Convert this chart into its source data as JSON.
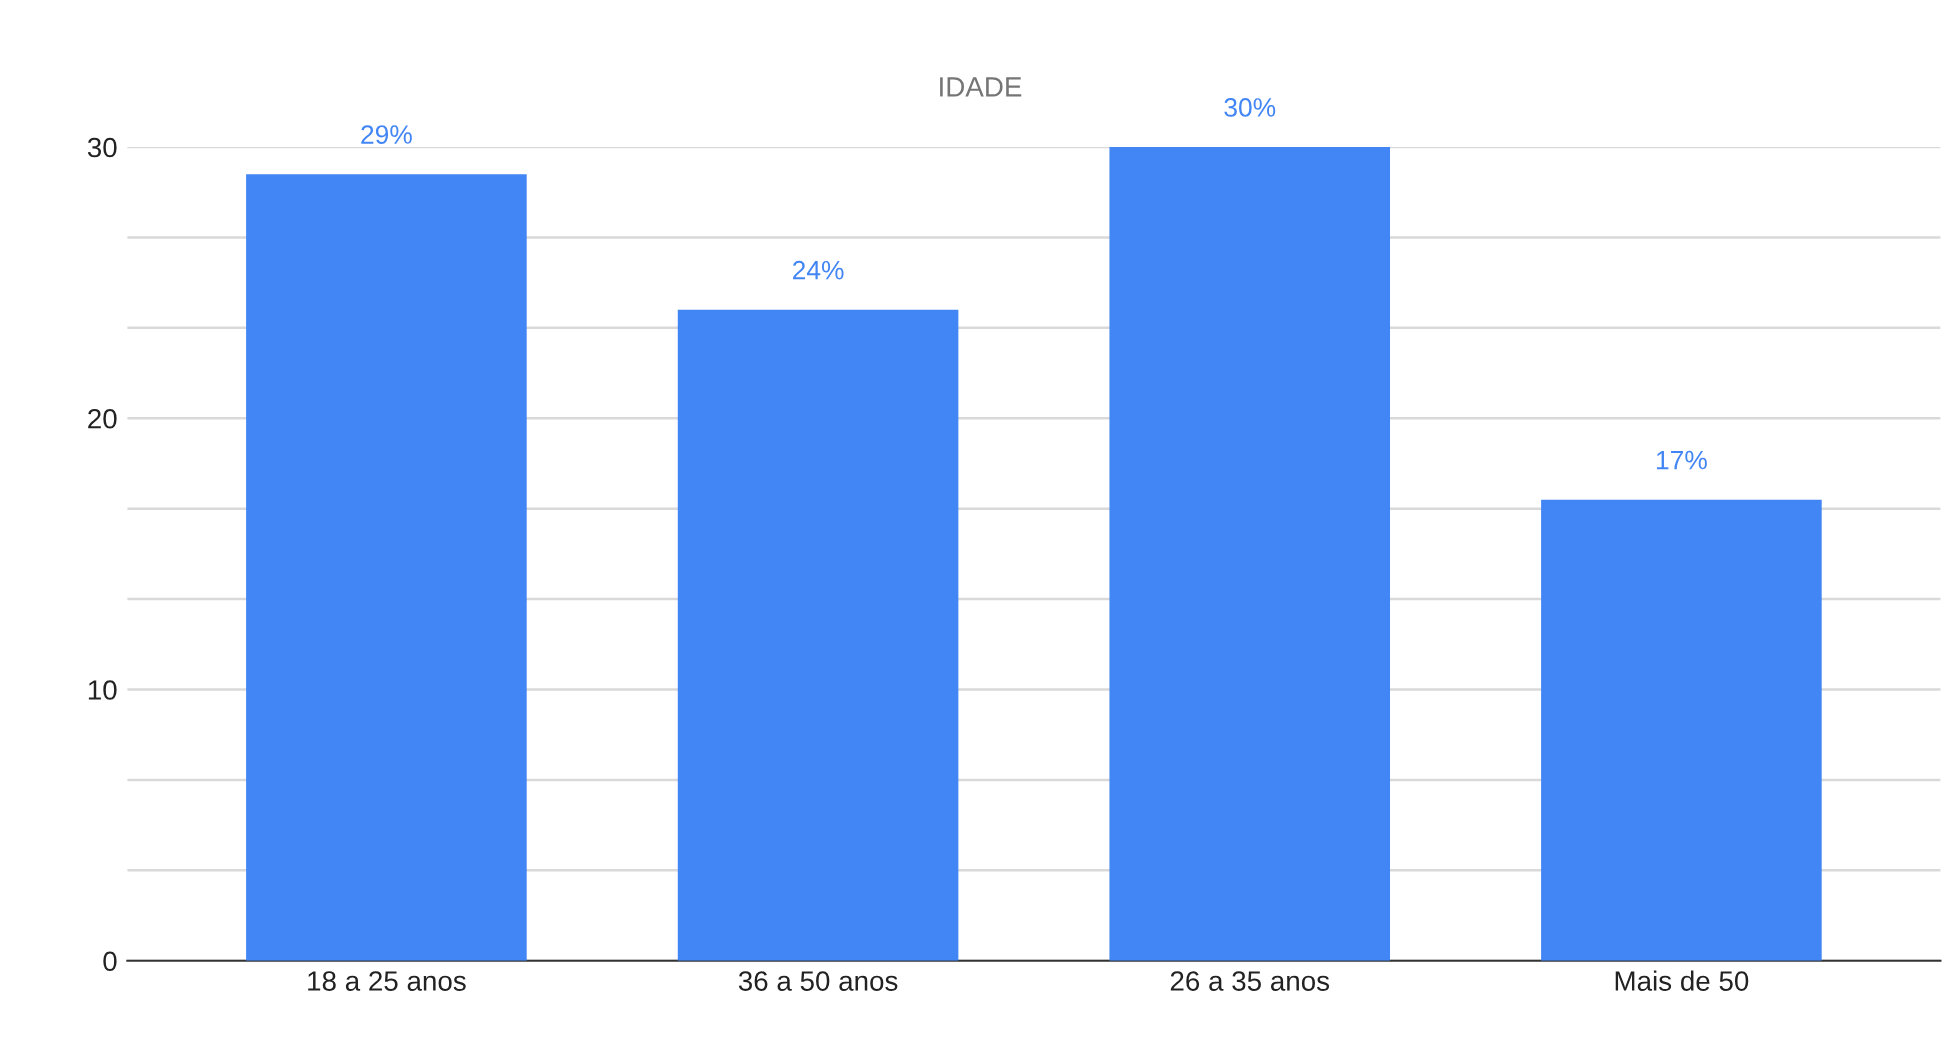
{
  "chart_data": {
    "type": "bar",
    "title": "IDADE",
    "categories": [
      "18 a 25 anos",
      "36 a 50 anos",
      "26 a 35 anos",
      "Mais de 50"
    ],
    "values": [
      29,
      24,
      30,
      17
    ],
    "value_labels": [
      "29%",
      "24%",
      "30%",
      "17%"
    ],
    "color": "#4285f4",
    "ylim": [
      0,
      30
    ],
    "yticks": [
      0,
      {
        "value": 3.333,
        "label": null
      },
      {
        "value": 6.667,
        "label": null
      },
      10,
      {
        "value": 13.333,
        "label": null
      },
      {
        "value": 16.667,
        "label": null
      },
      20,
      {
        "value": 23.333,
        "label": null
      },
      {
        "value": 26.667,
        "label": null
      },
      30
    ],
    "grid": "y"
  }
}
